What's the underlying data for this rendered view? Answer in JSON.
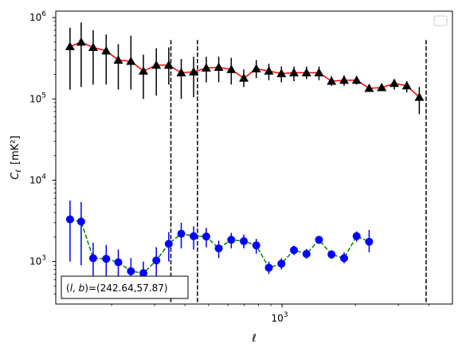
{
  "chart_data": {
    "type": "line",
    "xscale": "log",
    "yscale": "log",
    "xlim": [
      118,
      5000
    ],
    "ylim": [
      300,
      1200000
    ],
    "xlabel": "ℓ",
    "ylabel_main": "C",
    "ylabel_sub": "ℓ",
    "ylabel_unit": "[mK²]",
    "x_ticks": [
      {
        "value": 1000,
        "base": "10",
        "exp": "3"
      }
    ],
    "y_ticks": [
      {
        "value": 1000,
        "base": "10",
        "exp": "3"
      },
      {
        "value": 10000,
        "base": "10",
        "exp": "4"
      },
      {
        "value": 100000,
        "base": "10",
        "exp": "5"
      },
      {
        "value": 1000000,
        "base": "10",
        "exp": "6"
      }
    ],
    "annotation": "(l, b)=(242.64,57.87)",
    "annotation_parts": {
      "open": "(",
      "l": "l",
      "comma": ", ",
      "b": "b",
      "rest": ")=(242.64,57.87)"
    },
    "legend": {
      "position": "upper-right",
      "entries": []
    },
    "vlines": [
      350,
      450,
      3900
    ],
    "series": [
      {
        "marker": "triangle",
        "line_color": "#ff0000",
        "marker_color": "#000000",
        "linestyle": "solid",
        "points": [
          {
            "x": 135,
            "y": 440000,
            "lo": 130000,
            "hi": 750000
          },
          {
            "x": 150,
            "y": 500000,
            "lo": 140000,
            "hi": 870000
          },
          {
            "x": 168,
            "y": 430000,
            "lo": 150000,
            "hi": 700000
          },
          {
            "x": 190,
            "y": 390000,
            "lo": 150000,
            "hi": 620000
          },
          {
            "x": 213,
            "y": 300000,
            "lo": 130000,
            "hi": 470000
          },
          {
            "x": 240,
            "y": 290000,
            "lo": 130000,
            "hi": 600000
          },
          {
            "x": 270,
            "y": 220000,
            "lo": 100000,
            "hi": 350000
          },
          {
            "x": 305,
            "y": 260000,
            "lo": 110000,
            "hi": 420000
          },
          {
            "x": 343,
            "y": 260000,
            "lo": 150000,
            "hi": 430000
          },
          {
            "x": 386,
            "y": 210000,
            "lo": 100000,
            "hi": 310000
          },
          {
            "x": 434,
            "y": 215000,
            "lo": 105000,
            "hi": 330000
          },
          {
            "x": 489,
            "y": 240000,
            "lo": 160000,
            "hi": 330000
          },
          {
            "x": 550,
            "y": 245000,
            "lo": 160000,
            "hi": 330000
          },
          {
            "x": 619,
            "y": 230000,
            "lo": 150000,
            "hi": 320000
          },
          {
            "x": 697,
            "y": 180000,
            "lo": 140000,
            "hi": 230000
          },
          {
            "x": 784,
            "y": 235000,
            "lo": 180000,
            "hi": 300000
          },
          {
            "x": 883,
            "y": 220000,
            "lo": 170000,
            "hi": 270000
          },
          {
            "x": 994,
            "y": 205000,
            "lo": 160000,
            "hi": 250000
          },
          {
            "x": 1119,
            "y": 210000,
            "lo": 165000,
            "hi": 250000
          },
          {
            "x": 1260,
            "y": 210000,
            "lo": 175000,
            "hi": 250000
          },
          {
            "x": 1418,
            "y": 210000,
            "lo": 170000,
            "hi": 250000
          },
          {
            "x": 1596,
            "y": 165000,
            "lo": 145000,
            "hi": 190000
          },
          {
            "x": 1797,
            "y": 170000,
            "lo": 145000,
            "hi": 195000
          },
          {
            "x": 2023,
            "y": 170000,
            "lo": 150000,
            "hi": 190000
          },
          {
            "x": 2277,
            "y": 135000,
            "lo": 125000,
            "hi": 145000
          },
          {
            "x": 2564,
            "y": 138000,
            "lo": 128000,
            "hi": 150000
          },
          {
            "x": 2886,
            "y": 155000,
            "lo": 130000,
            "hi": 175000
          },
          {
            "x": 3249,
            "y": 145000,
            "lo": 120000,
            "hi": 165000
          },
          {
            "x": 3657,
            "y": 105000,
            "lo": 65000,
            "hi": 140000
          }
        ]
      },
      {
        "marker": "circle",
        "line_color": "#008000",
        "marker_color": "#0000ff",
        "linestyle": "dashed",
        "points": [
          {
            "x": 135,
            "y": 3300,
            "lo": 1000,
            "hi": 5600
          },
          {
            "x": 150,
            "y": 3100,
            "lo": 900,
            "hi": 5400
          },
          {
            "x": 168,
            "y": 1100,
            "lo": 600,
            "hi": 1700
          },
          {
            "x": 190,
            "y": 1080,
            "lo": 650,
            "hi": 1600
          },
          {
            "x": 213,
            "y": 980,
            "lo": 550,
            "hi": 1400
          },
          {
            "x": 240,
            "y": 760,
            "lo": 450,
            "hi": 1100
          },
          {
            "x": 270,
            "y": 720,
            "lo": 400,
            "hi": 1000
          },
          {
            "x": 305,
            "y": 1030,
            "lo": 550,
            "hi": 1500
          },
          {
            "x": 343,
            "y": 1650,
            "lo": 1000,
            "hi": 2300
          },
          {
            "x": 386,
            "y": 2200,
            "lo": 1450,
            "hi": 3000
          },
          {
            "x": 434,
            "y": 2050,
            "lo": 1400,
            "hi": 2700
          },
          {
            "x": 489,
            "y": 2030,
            "lo": 1500,
            "hi": 2600
          },
          {
            "x": 550,
            "y": 1450,
            "lo": 1100,
            "hi": 1800
          },
          {
            "x": 619,
            "y": 1850,
            "lo": 1450,
            "hi": 2250
          },
          {
            "x": 697,
            "y": 1780,
            "lo": 1450,
            "hi": 2150
          },
          {
            "x": 784,
            "y": 1580,
            "lo": 1250,
            "hi": 1900
          },
          {
            "x": 883,
            "y": 840,
            "lo": 700,
            "hi": 1000
          },
          {
            "x": 994,
            "y": 940,
            "lo": 800,
            "hi": 1100
          },
          {
            "x": 1119,
            "y": 1380,
            "lo": 1200,
            "hi": 1560
          },
          {
            "x": 1260,
            "y": 1240,
            "lo": 1080,
            "hi": 1420
          },
          {
            "x": 1418,
            "y": 1850,
            "lo": 1650,
            "hi": 2050
          },
          {
            "x": 1596,
            "y": 1220,
            "lo": 1080,
            "hi": 1380
          },
          {
            "x": 1797,
            "y": 1100,
            "lo": 950,
            "hi": 1300
          },
          {
            "x": 2023,
            "y": 2050,
            "lo": 1750,
            "hi": 2350
          },
          {
            "x": 2277,
            "y": 1750,
            "lo": 1300,
            "hi": 2450
          }
        ]
      }
    ]
  }
}
